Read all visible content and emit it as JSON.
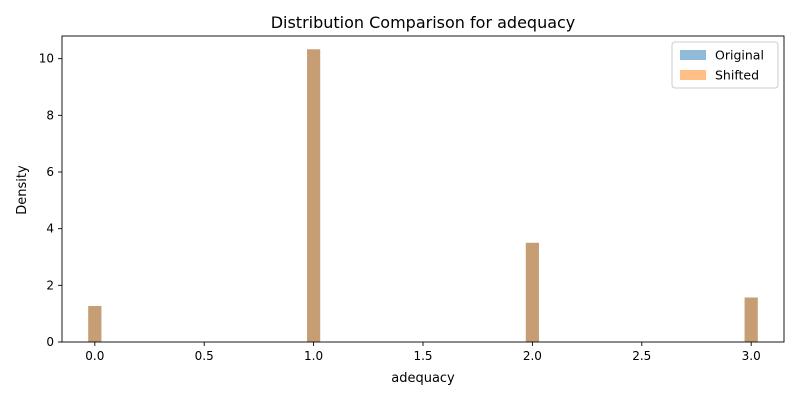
{
  "chart_data": {
    "type": "bar",
    "title": "Distribution Comparison for adequacy",
    "xlabel": "adequacy",
    "ylabel": "Density",
    "xlim": [
      -0.15,
      3.15
    ],
    "ylim": [
      0,
      10.8
    ],
    "xticks": [
      0.0,
      0.5,
      1.0,
      1.5,
      2.0,
      2.5,
      3.0
    ],
    "xtick_labels": [
      "0.0",
      "0.5",
      "1.0",
      "1.5",
      "2.0",
      "2.5",
      "3.0"
    ],
    "yticks": [
      0,
      2,
      4,
      6,
      8,
      10
    ],
    "ytick_labels": [
      "0",
      "2",
      "4",
      "6",
      "8",
      "10"
    ],
    "bin_width": 0.06,
    "bins": [
      0.0,
      1.0,
      2.0,
      3.0
    ],
    "series": [
      {
        "name": "Original",
        "color": "#1f77b4",
        "opacity": 0.5,
        "values": [
          1.27,
          10.33,
          3.5,
          1.57
        ]
      },
      {
        "name": "Shifted",
        "color": "#ff7f0e",
        "opacity": 0.5,
        "values": [
          1.27,
          10.33,
          3.5,
          1.57
        ]
      }
    ],
    "legend": "top-right",
    "grid": false
  }
}
